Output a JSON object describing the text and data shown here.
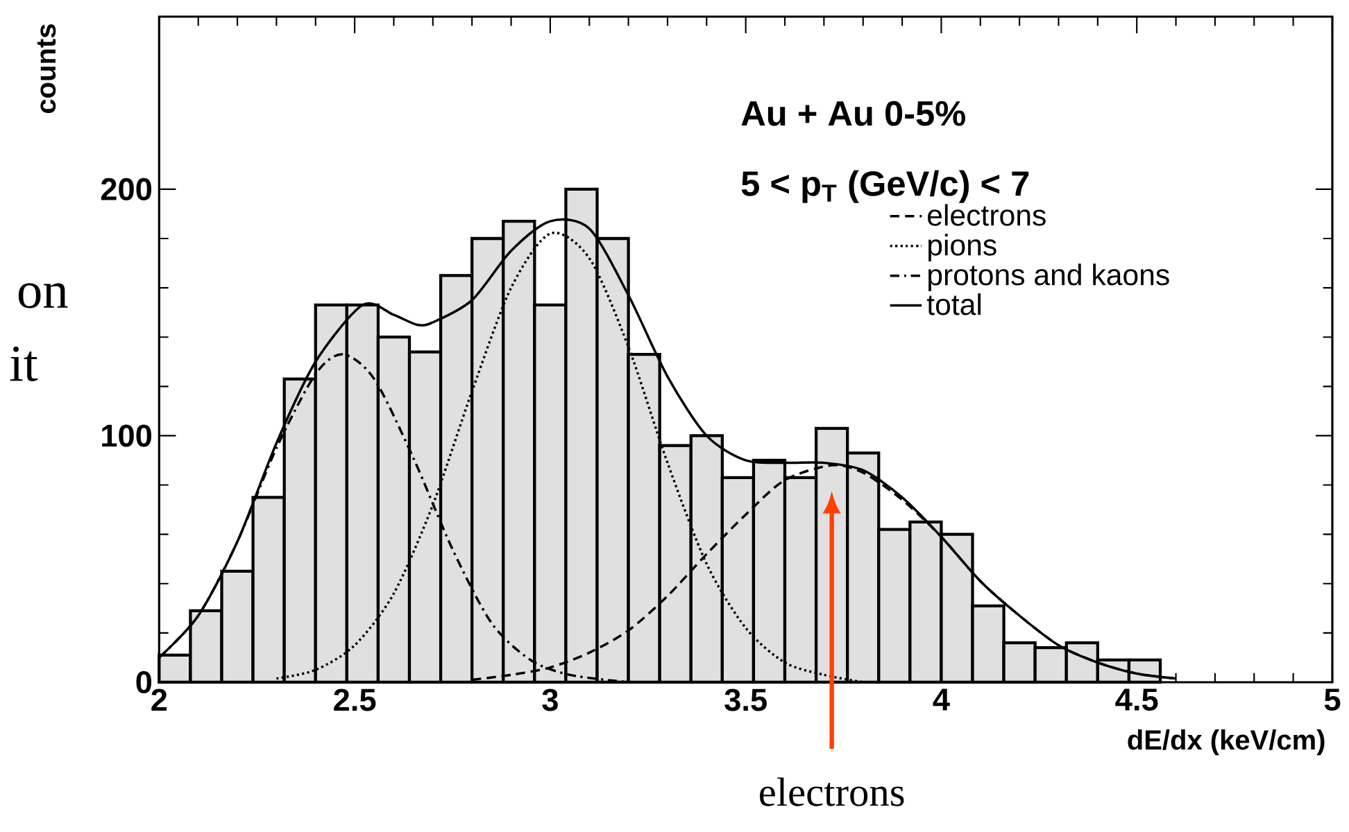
{
  "chart_data": {
    "type": "histogram",
    "xlabel": "dE/dx (keV/cm)",
    "ylabel": "counts",
    "bins": [
      2.0,
      2.08,
      2.16,
      2.24,
      2.32,
      2.4,
      2.48,
      2.56,
      2.64,
      2.72,
      2.8,
      2.88,
      2.96,
      3.04,
      3.12,
      3.2,
      3.28,
      3.36,
      3.44,
      3.52,
      3.6,
      3.68,
      3.76,
      3.84,
      3.92,
      4.0,
      4.08,
      4.16,
      4.24,
      4.32,
      4.4,
      4.48,
      4.56
    ],
    "values": [
      11,
      29,
      45,
      75,
      123,
      153,
      153,
      140,
      134,
      165,
      180,
      187,
      153,
      200,
      180,
      133,
      96,
      100,
      83,
      90,
      83,
      103,
      93,
      62,
      65,
      60,
      31,
      16,
      14,
      16,
      9,
      9
    ],
    "color": "#e0e0e0",
    "series": [
      {
        "name": "electrons",
        "type": "line",
        "line_style": "dashed",
        "color": "#000000",
        "x": [
          2.8,
          2.9,
          3.0,
          3.1,
          3.2,
          3.3,
          3.4,
          3.5,
          3.6,
          3.72,
          3.8,
          3.9,
          4.0,
          4.1,
          4.2,
          4.3,
          4.4,
          4.5,
          4.6
        ],
        "values": [
          1,
          3,
          6,
          12,
          21,
          35,
          52,
          68,
          82,
          88,
          85,
          74,
          59,
          41,
          27,
          15,
          8,
          3.5,
          1.5
        ]
      },
      {
        "name": "pions",
        "type": "line",
        "line_style": "dotted",
        "color": "#000000",
        "x": [
          2.3,
          2.4,
          2.5,
          2.6,
          2.7,
          2.8,
          2.9,
          3.0,
          3.1,
          3.2,
          3.3,
          3.4,
          3.5,
          3.6,
          3.7,
          3.8
        ],
        "values": [
          1.5,
          5,
          15,
          36,
          72,
          118,
          160,
          182,
          172,
          136,
          89,
          48,
          22,
          8,
          3,
          0
        ]
      },
      {
        "name": "protons and kaons",
        "type": "line",
        "line_style": "dashdot",
        "color": "#000000",
        "x": [
          2.0,
          2.1,
          2.2,
          2.3,
          2.4,
          2.47,
          2.55,
          2.65,
          2.75,
          2.85,
          2.95,
          3.05,
          3.2
        ],
        "values": [
          10,
          27,
          57,
          95,
          125,
          133,
          123,
          91,
          54,
          24,
          9,
          3,
          0
        ]
      },
      {
        "name": "total",
        "type": "line",
        "line_style": "solid",
        "color": "#000000",
        "x": [
          2.0,
          2.1,
          2.2,
          2.3,
          2.4,
          2.52,
          2.6,
          2.66,
          2.7,
          2.8,
          2.9,
          3.0,
          3.1,
          3.2,
          3.3,
          3.4,
          3.5,
          3.6,
          3.7,
          3.8,
          3.9,
          4.0,
          4.1,
          4.2,
          4.3,
          4.4,
          4.5,
          4.6
        ],
        "values": [
          10,
          27,
          57,
          97,
          130,
          153,
          149,
          145,
          146,
          155,
          175,
          187,
          184,
          157,
          124,
          100,
          90,
          89,
          89,
          86,
          75,
          59,
          41,
          27,
          15,
          8,
          3.5,
          1.5
        ]
      }
    ],
    "xlim": [
      2,
      5
    ],
    "ylim": [
      0,
      270
    ],
    "xticks": [
      2,
      2.5,
      3,
      3.5,
      4,
      4.5,
      5
    ],
    "yticks": [
      0,
      100,
      200
    ],
    "legend": "top right",
    "annotations": [
      "Au + Au 0-5%",
      "5 < p$_{T}$ (GeV/c) < 7",
      "electrons",
      "on",
      "it"
    ]
  }
}
